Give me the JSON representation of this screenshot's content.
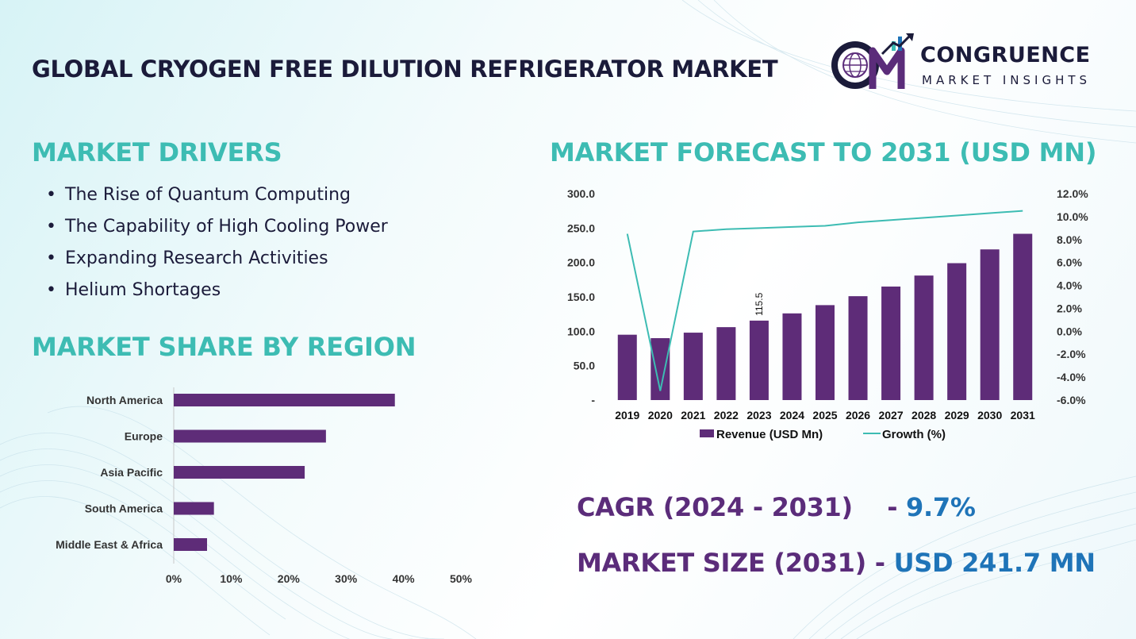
{
  "header": {
    "title": "GLOBAL CRYOGEN FREE DILUTION REFRIGERATOR MARKET",
    "logo_name": "CONGRUENCE",
    "logo_sub": "MARKET INSIGHTS"
  },
  "drivers": {
    "heading": "MARKET DRIVERS",
    "items": [
      "The Rise of Quantum Computing",
      "The Capability of High Cooling Power",
      "Expanding Research Activities",
      "Helium Shortages"
    ]
  },
  "region_share": {
    "heading": "MARKET SHARE BY REGION"
  },
  "forecast": {
    "heading": "MARKET FORECAST TO 2031 (USD MN)"
  },
  "stats": {
    "cagr_label": "CAGR (2024 - 2031)",
    "cagr_value": "9.7%",
    "size_label": "MARKET SIZE (2031)",
    "size_value": "USD 241.7 MN"
  },
  "colors": {
    "bar": "#5e2c78",
    "line": "#3dbcb3",
    "heading": "#3dbcb3",
    "title": "#1b1b3a",
    "stat_label": "#5b2c7a",
    "stat_value": "#1f74b8"
  },
  "chart_data": [
    {
      "type": "bar",
      "orientation": "horizontal",
      "categories": [
        "North America",
        "Europe",
        "Asia Pacific",
        "South America",
        "Middle East & Africa"
      ],
      "values": [
        38.5,
        26.5,
        22.8,
        7.0,
        5.8
      ],
      "xlim": [
        0,
        50
      ],
      "x_ticks": [
        "0%",
        "10%",
        "20%",
        "30%",
        "40%",
        "50%"
      ],
      "grid": false
    },
    {
      "type": "bar+line",
      "categories": [
        "2019",
        "2020",
        "2021",
        "2022",
        "2023",
        "2024",
        "2025",
        "2026",
        "2027",
        "2028",
        "2029",
        "2030",
        "2031"
      ],
      "series": [
        {
          "name": "Revenue (USD Mn)",
          "type": "bar",
          "axis": "left",
          "values": [
            95,
            90,
            98,
            106,
            115.5,
            126,
            138,
            151,
            165,
            181,
            199,
            219,
            241.7
          ]
        },
        {
          "name": "Growth (%)",
          "type": "line",
          "axis": "right",
          "values": [
            8.5,
            -5.2,
            8.7,
            8.9,
            9.0,
            9.1,
            9.2,
            9.5,
            9.7,
            9.9,
            10.1,
            10.3,
            10.5
          ]
        }
      ],
      "y_left_ticks": [
        "-",
        "50.0",
        "100.0",
        "150.0",
        "200.0",
        "250.0",
        "300.0"
      ],
      "y_left_lim": [
        0,
        300
      ],
      "y_right_ticks": [
        "-6.0%",
        "-4.0%",
        "-2.0%",
        "0.0%",
        "2.0%",
        "4.0%",
        "6.0%",
        "8.0%",
        "10.0%",
        "12.0%"
      ],
      "y_right_lim": [
        -6,
        12
      ],
      "data_labels": [
        {
          "category": "2023",
          "text": "115.5"
        }
      ],
      "legend_position": "bottom",
      "grid": false
    }
  ]
}
